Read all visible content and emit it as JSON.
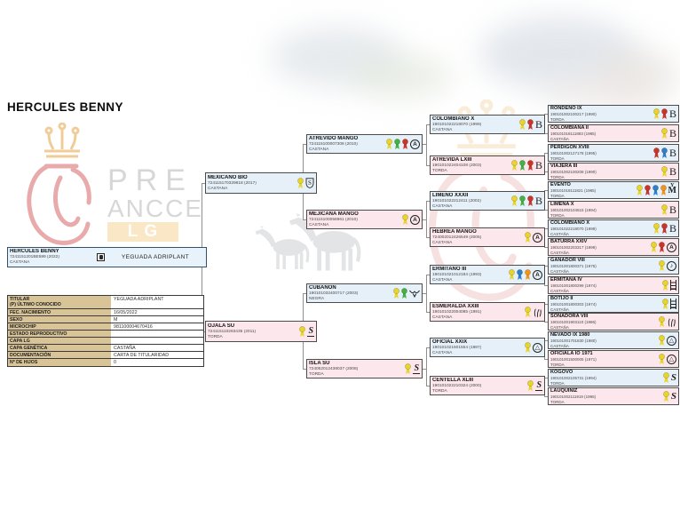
{
  "title": "HERCULES BENNY",
  "watermark": {
    "word1": "PRE",
    "word2": "ANCCE",
    "badge": "LG"
  },
  "subject": {
    "name": "HERCULES BENNY",
    "reg": "7241151201BE599 (2022)",
    "capa": "CASTAÑA",
    "owner": "YEGUADA ADRIPLANT"
  },
  "info_table": {
    "rows": [
      {
        "label": "TITULAR",
        "sublabel": "(P) ÚLTIMO CONOCIDO",
        "value": "YEGUADA ADRIPLANT"
      },
      {
        "label": "FEC. NACIMIENTO",
        "value": "16/05/2022"
      },
      {
        "label": "SEXO",
        "value": "M"
      },
      {
        "label": "MICROCHIP",
        "value": "981100004670416"
      },
      {
        "label": "ESTADO REPRODUCTIVO",
        "value": ""
      },
      {
        "label": "CAPA LG",
        "value": ""
      },
      {
        "label": "CAPA GENÉTICA",
        "value": "CASTAÑA"
      },
      {
        "label": "DOCUMENTACIÓN",
        "value": "CARTA DE TITULARIDAD"
      },
      {
        "label": "Nº DE HIJOS",
        "value": "0"
      }
    ]
  },
  "pedigree": {
    "generations": [
      [
        {
          "name": "MEXICANO BIO",
          "reg": "724115170329818 (2017)",
          "capa": "CASTAÑA",
          "sex": "m",
          "rosettes": [
            "yellow"
          ],
          "brand": "shield-s"
        },
        {
          "name": "OJALA SU",
          "reg": "724115110283435 (2011)",
          "capa": "TORDA",
          "sex": "f",
          "rosettes": [
            "yellow"
          ],
          "brand": "s-base"
        }
      ],
      [
        {
          "name": "ATREVIDO MANGO",
          "reg": "724115100007308 (2010)",
          "capa": "CASTAÑA",
          "sex": "m",
          "rosettes": [
            "yellow",
            "green",
            "red"
          ],
          "brand": "circle-a"
        },
        {
          "name": "MEJICANA MANGO",
          "reg": "724115100056961 (2010)",
          "capa": "CASTAÑA",
          "sex": "f",
          "rosettes": [
            "yellow"
          ],
          "brand": "circle-a"
        },
        {
          "name": "CUBANON",
          "reg": "190101032400717 (2003)",
          "capa": "NEGRA",
          "sex": "m",
          "rosettes": [
            "yellow",
            "green"
          ],
          "brand": "bird"
        },
        {
          "name": "ISLA SU",
          "reg": "724052012438037 (2008)",
          "capa": "TORDA",
          "sex": "f",
          "rosettes": [
            "yellow"
          ],
          "brand": "s-base"
        }
      ],
      [
        {
          "name": "COLOMBIANO X",
          "reg": "190101022218070 (1999)",
          "capa": "CASTAÑA",
          "sex": "m",
          "rosettes": [
            "yellow",
            "red"
          ],
          "brand": "b-serif"
        },
        {
          "name": "ATREVIDA LXIII",
          "reg": "190101022404108 (2003)",
          "capa": "TORDA",
          "sex": "f",
          "rosettes": [
            "yellow",
            "green",
            "red"
          ],
          "brand": "b-serif"
        },
        {
          "name": "LIMEÑO XXXII",
          "reg": "190101022212411 (2002)",
          "capa": "CASTAÑA",
          "sex": "m",
          "rosettes": [
            "yellow",
            "green",
            "red"
          ],
          "brand": "b-serif"
        },
        {
          "name": "HEBREA MANGO",
          "reg": "724002012426549 (2005)",
          "capa": "CASTAÑA",
          "sex": "f",
          "rosettes": [
            "yellow"
          ],
          "brand": "circle-a"
        },
        {
          "name": "ERMITAÑO III",
          "reg": "190101021012184 (1993)",
          "capa": "CASTAÑA",
          "sex": "m",
          "rosettes": [
            "yellow",
            "blue",
            "orange"
          ],
          "brand": "circle-a"
        },
        {
          "name": "ESMERALDA XXIII",
          "reg": "190101022004085 (1991)",
          "capa": "CASTAÑA",
          "sex": "f",
          "rosettes": [
            "yellow"
          ],
          "brand": "claw"
        },
        {
          "name": "OFICIAL XXIX",
          "reg": "190101021601554 (1987)",
          "capa": "CASTAÑA",
          "sex": "m",
          "rosettes": [
            "yellow"
          ],
          "brand": "circle-tri"
        },
        {
          "name": "CENTELLA XLIII",
          "reg": "190101022210324 (2000)",
          "capa": "TORDA",
          "sex": "f",
          "rosettes": [
            "yellow"
          ],
          "brand": "s-base"
        }
      ],
      [
        {
          "name": "RONDEÑO IX",
          "reg": "190101002100217 (1990)",
          "capa": "TORDA",
          "sex": "m",
          "rosettes": [
            "yellow",
            "red"
          ],
          "brand": "b-serif"
        },
        {
          "name": "COLOMBIANA II",
          "reg": "190101018111883 (1985)",
          "capa": "CASTAÑA",
          "sex": "f",
          "rosettes": [
            "yellow"
          ],
          "brand": "b-serif"
        },
        {
          "name": "PERDIGON XVIII",
          "reg": "190101002127178 (1995)",
          "capa": "TORDA",
          "sex": "m",
          "rosettes": [
            "red",
            "blue"
          ],
          "brand": "b-serif"
        },
        {
          "name": "VIAJERA III",
          "reg": "190101002100208 (1990)",
          "capa": "TORDA",
          "sex": "f",
          "rosettes": [
            "yellow"
          ],
          "brand": "b-serif"
        },
        {
          "name": "EVENTO",
          "reg": "190101018111821 (1985)",
          "capa": "TORDA",
          "sex": "m",
          "rosettes": [
            "yellow",
            "red",
            "blue",
            "orange"
          ],
          "brand": "ym"
        },
        {
          "name": "LIMEÑA X",
          "reg": "190101002104515 (1994)",
          "capa": "TORDA",
          "sex": "f",
          "rosettes": [
            "yellow"
          ],
          "brand": "b-serif"
        },
        {
          "name": "COLOMBIANO X",
          "reg": "190101022218070 (1999)",
          "capa": "CASTAÑA",
          "sex": "m",
          "rosettes": [
            "yellow",
            "red"
          ],
          "brand": "b-serif"
        },
        {
          "name": "BATURRA XXIV",
          "reg": "190101002203317 (1999)",
          "capa": "CASTAÑA",
          "sex": "f",
          "rosettes": [
            "yellow",
            "red"
          ],
          "brand": "circle-a"
        },
        {
          "name": "GANADOR VIII",
          "reg": "190101001800371 (1975)",
          "capa": "CASTAÑA",
          "sex": "m",
          "rosettes": [
            "yellow"
          ],
          "brand": "circle-note"
        },
        {
          "name": "ERMITANA IV",
          "reg": "190101001800299 (1974)",
          "capa": "CASTAÑA",
          "sex": "f",
          "rosettes": [
            "yellow"
          ],
          "brand": "ladder"
        },
        {
          "name": "BOTIJO II",
          "reg": "190101001800303 (1974)",
          "capa": "CASTAÑA",
          "sex": "m",
          "rosettes": [
            "yellow"
          ],
          "brand": "ladder"
        },
        {
          "name": "SOÑADORA VIII",
          "reg": "190101001903110 (1986)",
          "capa": "CASTAÑA",
          "sex": "f",
          "rosettes": [
            "yellow"
          ],
          "brand": "claw"
        },
        {
          "name": "NEVADO IX 1980",
          "reg": "190101001701830 (1980)",
          "capa": "CASTAÑA",
          "sex": "m",
          "rosettes": [
            "yellow"
          ],
          "brand": "circle-tri"
        },
        {
          "name": "OFICIALA IO 1971",
          "reg": "190101001500005 (1971)",
          "capa": "TORDA",
          "sex": "f",
          "rosettes": [
            "yellow"
          ],
          "brand": "circle-tri"
        },
        {
          "name": "KOGOVO",
          "reg": "190101002105731 (1994)",
          "capa": "TORDA",
          "sex": "m",
          "rosettes": [
            "yellow"
          ],
          "brand": "s-curl"
        },
        {
          "name": "LAUQUINIZ",
          "reg": "190101002111919 (1995)",
          "capa": "TORDA",
          "sex": "f",
          "rosettes": [
            "yellow"
          ],
          "brand": "s-curl"
        }
      ]
    ]
  },
  "colors": {
    "male_bg": "#e6f0f8",
    "female_bg": "#fbe7ec",
    "label_bg": "#d9c498",
    "watermark_red": "#e59c9c",
    "watermark_gold": "#eec487",
    "rosette": {
      "yellow": "#e8d52b",
      "green": "#43b049",
      "red": "#c8342e",
      "blue": "#2e7ecb",
      "orange": "#ef9420"
    }
  }
}
